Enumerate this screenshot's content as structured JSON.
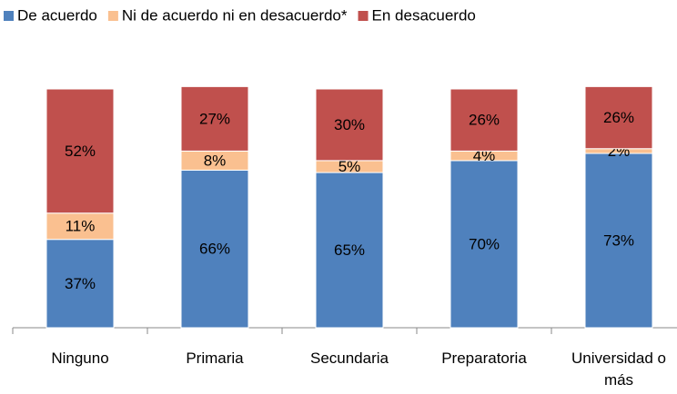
{
  "chart_data": {
    "type": "stacked_bar",
    "categories": [
      "Ninguno",
      "Primaria",
      "Secundaria",
      "Preparatoria",
      "Universidad o más"
    ],
    "series": [
      {
        "name": "De acuerdo",
        "color": "#4f81bd",
        "values": [
          37,
          66,
          65,
          70,
          73
        ],
        "value_labels": [
          "37%",
          "66%",
          "65%",
          "70%",
          "73%"
        ]
      },
      {
        "name": "Ni de acuerdo ni en desacuerdo*",
        "color": "#fac090",
        "values": [
          11,
          8,
          5,
          4,
          2
        ],
        "value_labels": [
          "11%",
          "8%",
          "5%",
          "4%",
          "2%"
        ]
      },
      {
        "name": "En desacuerdo",
        "color": "#c0504d",
        "values": [
          52,
          27,
          30,
          26,
          26
        ],
        "value_labels": [
          "52%",
          "27%",
          "30%",
          "26%",
          "26%"
        ]
      }
    ],
    "ylim": [
      0,
      100
    ],
    "legend": "top"
  }
}
